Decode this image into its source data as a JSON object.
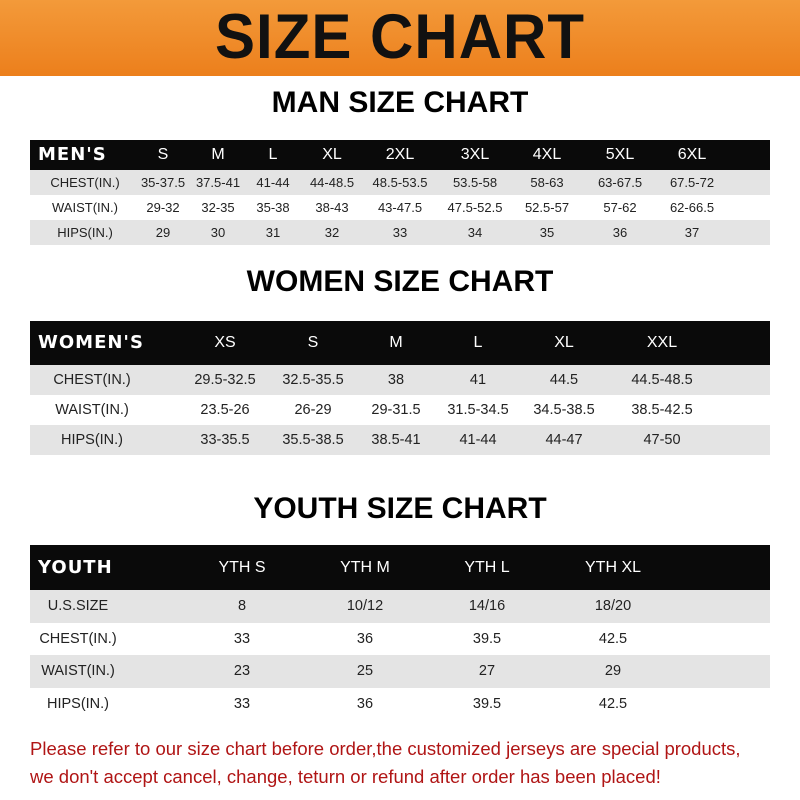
{
  "banner": {
    "title": "SIZE CHART",
    "color": "#ee8424"
  },
  "men": {
    "title": "MAN SIZE CHART",
    "header": [
      "MEN'S",
      "S",
      "M",
      "L",
      "XL",
      "2XL",
      "3XL",
      "4XL",
      "5XL",
      "6XL"
    ],
    "rows": [
      [
        "CHEST(IN.)",
        "35-37.5",
        "37.5-41",
        "41-44",
        "44-48.5",
        "48.5-53.5",
        "53.5-58",
        "58-63",
        "63-67.5",
        "67.5-72"
      ],
      [
        "WAIST(IN.)",
        "29-32",
        "32-35",
        "35-38",
        "38-43",
        "43-47.5",
        "47.5-52.5",
        "52.5-57",
        "57-62",
        "62-66.5"
      ],
      [
        "HIPS(IN.)",
        "29",
        "30",
        "31",
        "32",
        "33",
        "34",
        "35",
        "36",
        "37"
      ]
    ]
  },
  "women": {
    "title": "WOMEN SIZE CHART",
    "header": [
      "WOMEN'S",
      "XS",
      "S",
      "M",
      "L",
      "XL",
      "XXL"
    ],
    "rows": [
      [
        "CHEST(IN.)",
        "29.5-32.5",
        "32.5-35.5",
        "38",
        "41",
        "44.5",
        "44.5-48.5"
      ],
      [
        "WAIST(IN.)",
        "23.5-26",
        "26-29",
        "29-31.5",
        "31.5-34.5",
        "34.5-38.5",
        "38.5-42.5"
      ],
      [
        "HIPS(IN.)",
        "33-35.5",
        "35.5-38.5",
        "38.5-41",
        "41-44",
        "44-47",
        "47-50"
      ]
    ]
  },
  "youth": {
    "title": "YOUTH SIZE CHART",
    "header": [
      "YOUTH",
      "YTH S",
      "YTH M",
      "YTH L",
      "YTH XL"
    ],
    "rows": [
      [
        "U.S.SIZE",
        "8",
        "10/12",
        "14/16",
        "18/20"
      ],
      [
        "CHEST(IN.)",
        "33",
        "36",
        "39.5",
        "42.5"
      ],
      [
        "WAIST(IN.)",
        "23",
        "25",
        "27",
        "29"
      ],
      [
        "HIPS(IN.)",
        "33",
        "36",
        "39.5",
        "42.5"
      ]
    ]
  },
  "notice": {
    "line1": "Please refer to our size chart before order,the customized jerseys are special products,",
    "line2": "we don't accept cancel, change, teturn or refund after order has been placed!",
    "color": "#b01515"
  }
}
